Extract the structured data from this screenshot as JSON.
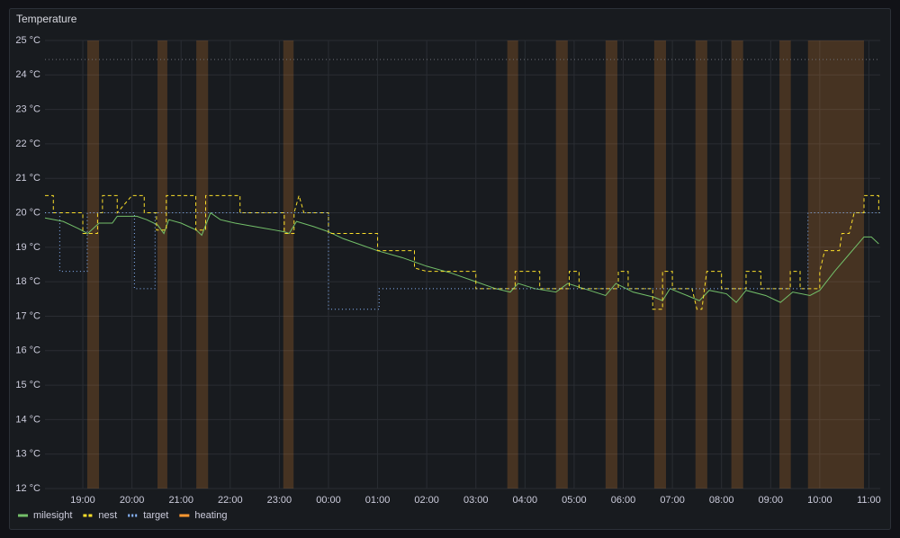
{
  "chart_data": {
    "type": "timeseries",
    "title": "Temperature",
    "xlim": [
      18.23,
      35.23
    ],
    "ylim": [
      12,
      25
    ],
    "xticks": [
      {
        "value": 19,
        "label": "19:00"
      },
      {
        "value": 20,
        "label": "20:00"
      },
      {
        "value": 21,
        "label": "21:00"
      },
      {
        "value": 22,
        "label": "22:00"
      },
      {
        "value": 23,
        "label": "23:00"
      },
      {
        "value": 24,
        "label": "00:00"
      },
      {
        "value": 25,
        "label": "01:00"
      },
      {
        "value": 26,
        "label": "02:00"
      },
      {
        "value": 27,
        "label": "03:00"
      },
      {
        "value": 28,
        "label": "04:00"
      },
      {
        "value": 29,
        "label": "05:00"
      },
      {
        "value": 30,
        "label": "06:00"
      },
      {
        "value": 31,
        "label": "07:00"
      },
      {
        "value": 32,
        "label": "08:00"
      },
      {
        "value": 33,
        "label": "09:00"
      },
      {
        "value": 34,
        "label": "10:00"
      },
      {
        "value": 35,
        "label": "11:00"
      }
    ],
    "yticks": [
      {
        "value": 12,
        "label": "12 °C"
      },
      {
        "value": 13,
        "label": "13 °C"
      },
      {
        "value": 14,
        "label": "14 °C"
      },
      {
        "value": 15,
        "label": "15 °C"
      },
      {
        "value": 16,
        "label": "16 °C"
      },
      {
        "value": 17,
        "label": "17 °C"
      },
      {
        "value": 18,
        "label": "18 °C"
      },
      {
        "value": 19,
        "label": "19 °C"
      },
      {
        "value": 20,
        "label": "20 °C"
      },
      {
        "value": 21,
        "label": "21 °C"
      },
      {
        "value": 22,
        "label": "22 °C"
      },
      {
        "value": 23,
        "label": "23 °C"
      },
      {
        "value": 24,
        "label": "24 °C"
      },
      {
        "value": 25,
        "label": "25 °C"
      }
    ],
    "grid": true,
    "legend": "bottom-left",
    "threshold": 24.45,
    "series": [
      {
        "name": "milesight",
        "color": "#73bf69",
        "style": "solid",
        "x": [
          18.23,
          18.6,
          18.9,
          19.1,
          19.33,
          19.6,
          19.7,
          20.1,
          20.3,
          20.52,
          20.65,
          20.75,
          21.0,
          21.31,
          21.42,
          21.6,
          21.8,
          22.1,
          22.5,
          22.9,
          23.1,
          23.2,
          23.35,
          23.7,
          24.0,
          24.3,
          24.6,
          25.0,
          25.5,
          26.0,
          26.5,
          27.0,
          27.4,
          27.7,
          27.86,
          28.2,
          28.63,
          28.87,
          29.2,
          29.64,
          29.85,
          30.2,
          30.63,
          30.8,
          30.95,
          31.3,
          31.55,
          31.75,
          32.1,
          32.3,
          32.5,
          32.9,
          33.2,
          33.45,
          33.8,
          34.0,
          34.3,
          34.6,
          34.9,
          35.05,
          35.2
        ],
        "values": [
          19.85,
          19.75,
          19.55,
          19.4,
          19.7,
          19.7,
          19.9,
          19.9,
          19.8,
          19.65,
          19.4,
          19.8,
          19.7,
          19.5,
          19.35,
          20.0,
          19.8,
          19.7,
          19.6,
          19.5,
          19.45,
          19.4,
          19.75,
          19.6,
          19.45,
          19.25,
          19.1,
          18.9,
          18.7,
          18.45,
          18.25,
          18.0,
          17.8,
          17.7,
          17.95,
          17.8,
          17.7,
          17.95,
          17.8,
          17.6,
          17.95,
          17.7,
          17.55,
          17.45,
          17.8,
          17.6,
          17.45,
          17.75,
          17.65,
          17.4,
          17.75,
          17.6,
          17.4,
          17.7,
          17.6,
          17.75,
          18.3,
          18.8,
          19.3,
          19.3,
          19.1
        ]
      },
      {
        "name": "nest",
        "color": "#fade2a",
        "style": "dashed",
        "x": [
          18.23,
          18.4,
          18.4,
          19.0,
          19.0,
          19.3,
          19.3,
          19.4,
          19.4,
          19.7,
          19.7,
          20.0,
          20.25,
          20.25,
          20.5,
          20.5,
          20.7,
          20.7,
          21.3,
          21.3,
          21.5,
          21.5,
          22.2,
          22.2,
          23.1,
          23.1,
          23.3,
          23.3,
          23.4,
          23.5,
          24.0,
          24.0,
          25.0,
          25.0,
          25.75,
          25.75,
          26.0,
          27.0,
          27.0,
          27.8,
          27.8,
          28.3,
          28.3,
          28.9,
          28.9,
          29.1,
          29.1,
          29.9,
          29.9,
          30.1,
          30.1,
          30.6,
          30.6,
          30.8,
          30.8,
          31.0,
          31.0,
          31.4,
          31.5,
          31.6,
          31.7,
          32.0,
          32.0,
          32.5,
          32.5,
          32.8,
          32.8,
          33.4,
          33.4,
          33.6,
          33.6,
          34.0,
          34.0,
          34.1,
          34.4,
          34.45,
          34.6,
          34.7,
          34.9,
          34.9,
          35.2,
          35.2
        ],
        "values": [
          20.5,
          20.5,
          20.0,
          20.0,
          19.4,
          19.4,
          20.0,
          20.0,
          20.5,
          20.5,
          20.0,
          20.5,
          20.5,
          20.0,
          20.0,
          19.5,
          19.5,
          20.5,
          20.5,
          19.5,
          19.5,
          20.5,
          20.5,
          20.0,
          20.0,
          19.4,
          19.4,
          20.0,
          20.5,
          20.0,
          20.0,
          19.4,
          19.4,
          18.9,
          18.9,
          18.4,
          18.3,
          18.3,
          17.8,
          17.8,
          18.3,
          18.3,
          17.8,
          17.8,
          18.3,
          18.3,
          17.8,
          17.8,
          18.3,
          18.3,
          17.8,
          17.8,
          17.2,
          17.2,
          18.3,
          18.3,
          17.8,
          17.8,
          17.2,
          17.2,
          18.3,
          18.3,
          17.8,
          17.8,
          18.3,
          18.3,
          17.8,
          17.8,
          18.3,
          18.3,
          17.8,
          17.8,
          18.3,
          18.9,
          18.9,
          19.4,
          19.4,
          20.0,
          20.0,
          20.5,
          20.5,
          20.0
        ]
      },
      {
        "name": "target",
        "color": "#8ab8ff",
        "style": "dotted",
        "x": [
          18.23,
          18.53,
          18.53,
          19.09,
          19.09,
          20.05,
          20.05,
          20.47,
          20.47,
          24.0,
          24.0,
          25.03,
          25.03,
          33.76,
          33.76,
          35.23
        ],
        "values": [
          20.0,
          20.0,
          18.3,
          18.3,
          20.0,
          20.0,
          17.8,
          17.8,
          20.0,
          20.0,
          17.2,
          17.2,
          17.8,
          17.8,
          20.0,
          20.0
        ]
      },
      {
        "name": "heating",
        "color": "#ff9830",
        "style": "bands",
        "intervals": [
          [
            19.09,
            19.33
          ],
          [
            20.52,
            20.72
          ],
          [
            21.31,
            21.55
          ],
          [
            23.08,
            23.29
          ],
          [
            27.64,
            27.86
          ],
          [
            28.63,
            28.87
          ],
          [
            29.64,
            29.88
          ],
          [
            30.63,
            30.87
          ],
          [
            31.47,
            31.71
          ],
          [
            32.2,
            32.44
          ],
          [
            33.18,
            33.41
          ],
          [
            33.76,
            34.9
          ]
        ]
      }
    ]
  }
}
